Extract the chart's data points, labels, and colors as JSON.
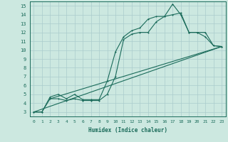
{
  "xlabel": "Humidex (Indice chaleur)",
  "bg_color": "#cce8e0",
  "grid_color": "#aacccc",
  "line_color": "#1a6b5a",
  "xlim": [
    -0.5,
    23.5
  ],
  "ylim": [
    2.5,
    15.5
  ],
  "xticks": [
    0,
    1,
    2,
    3,
    4,
    5,
    6,
    7,
    8,
    9,
    10,
    11,
    12,
    13,
    14,
    15,
    16,
    17,
    18,
    19,
    20,
    21,
    22,
    23
  ],
  "yticks": [
    3,
    4,
    5,
    6,
    7,
    8,
    9,
    10,
    11,
    12,
    13,
    14,
    15
  ],
  "line1_x": [
    0,
    1,
    2,
    3,
    4,
    5,
    6,
    7,
    8,
    9,
    10,
    11,
    12,
    13,
    14,
    15,
    16,
    17,
    18,
    19,
    20,
    21,
    22,
    23
  ],
  "line1_y": [
    3,
    3,
    4.5,
    4.5,
    4.3,
    4.5,
    4.3,
    4.3,
    4.3,
    5.0,
    7.0,
    11.2,
    11.8,
    12.0,
    12.0,
    13.2,
    13.8,
    15.2,
    14.0,
    12.0,
    12.0,
    12.0,
    10.5,
    10.4
  ],
  "line2_x": [
    0,
    1,
    2,
    3,
    4,
    5,
    6,
    7,
    8,
    9,
    10,
    11,
    12,
    13,
    14,
    15,
    16,
    17,
    18,
    19,
    20,
    21,
    22,
    23
  ],
  "line2_y": [
    3,
    3,
    4.7,
    5.0,
    4.5,
    5.0,
    4.4,
    4.4,
    4.4,
    6.5,
    9.8,
    11.5,
    12.2,
    12.5,
    13.5,
    13.8,
    13.8,
    14.0,
    14.2,
    12.0,
    12.0,
    11.5,
    10.5,
    10.4
  ],
  "line3_x": [
    0,
    23
  ],
  "line3_y": [
    3,
    10.4
  ],
  "line4_x": [
    2,
    23
  ],
  "line4_y": [
    4.5,
    10.4
  ]
}
